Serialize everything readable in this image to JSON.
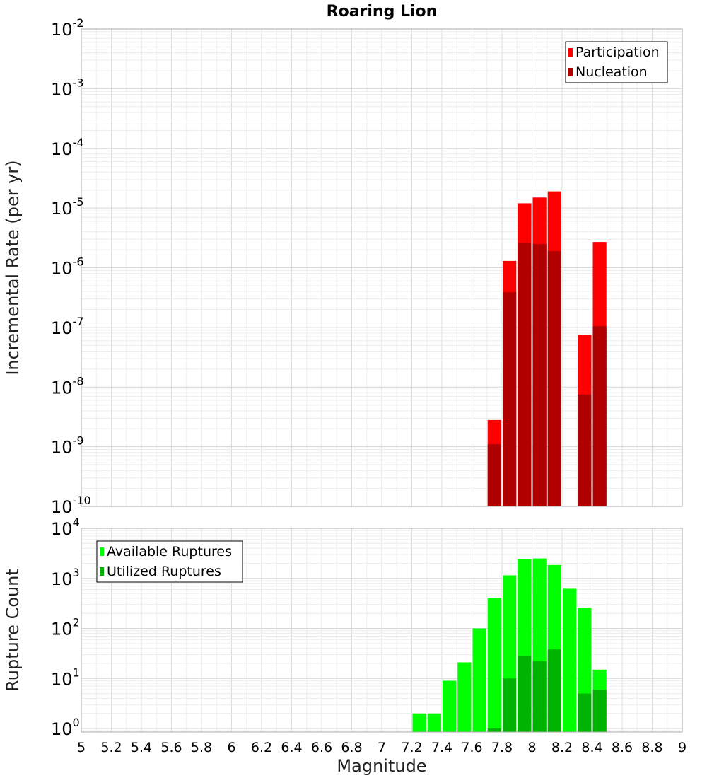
{
  "chart_data": [
    {
      "type": "bar",
      "title": "Roaring Lion",
      "xlabel": "",
      "ylabel": "Incremental Rate (per yr)",
      "yscale": "log",
      "ylim_exp": [
        -10,
        -2
      ],
      "xlim": [
        5,
        9
      ],
      "bin_width": 0.1,
      "grid": true,
      "legend_position": "top-right",
      "y_ticks": [
        {
          "base": "10",
          "exp": "-10"
        },
        {
          "base": "10",
          "exp": "-9"
        },
        {
          "base": "10",
          "exp": "-8"
        },
        {
          "base": "10",
          "exp": "-7"
        },
        {
          "base": "10",
          "exp": "-6"
        },
        {
          "base": "10",
          "exp": "-5"
        },
        {
          "base": "10",
          "exp": "-4"
        },
        {
          "base": "10",
          "exp": "-3"
        },
        {
          "base": "10",
          "exp": "-2"
        }
      ],
      "series": [
        {
          "name": "Participation",
          "color": "#ff0000",
          "x": [
            7.75,
            7.85,
            7.95,
            8.05,
            8.15,
            8.35,
            8.45
          ],
          "values": [
            2.8e-09,
            1.3e-06,
            1.2e-05,
            1.5e-05,
            1.9e-05,
            7.5e-08,
            2.7e-06
          ]
        },
        {
          "name": "Nucleation",
          "color": "#b00000",
          "x": [
            7.75,
            7.85,
            7.95,
            8.05,
            8.15,
            8.35,
            8.45
          ],
          "values": [
            1.1e-09,
            3.9e-07,
            2.6e-06,
            2.5e-06,
            1.9e-06,
            7.5e-09,
            1.05e-07
          ]
        }
      ]
    },
    {
      "type": "bar",
      "title": "",
      "xlabel": "Magnitude",
      "ylabel": "Rupture Count",
      "yscale": "log",
      "ylim_exp": [
        -0.07,
        4
      ],
      "xlim": [
        5,
        9
      ],
      "bin_width": 0.1,
      "grid": true,
      "legend_position": "top-left",
      "x_ticks": [
        "5",
        "5.2",
        "5.4",
        "5.6",
        "5.8",
        "6",
        "6.2",
        "6.4",
        "6.6",
        "6.8",
        "7",
        "7.2",
        "7.4",
        "7.6",
        "7.8",
        "8",
        "8.2",
        "8.4",
        "8.6",
        "8.8",
        "9"
      ],
      "y_ticks": [
        {
          "base": "10",
          "exp": "0"
        },
        {
          "base": "10",
          "exp": "1"
        },
        {
          "base": "10",
          "exp": "2"
        },
        {
          "base": "10",
          "exp": "3"
        },
        {
          "base": "10",
          "exp": "4"
        }
      ],
      "series": [
        {
          "name": "Available Ruptures",
          "color": "#00ff00",
          "x": [
            7.25,
            7.35,
            7.45,
            7.55,
            7.65,
            7.75,
            7.85,
            7.95,
            8.05,
            8.15,
            8.25,
            8.35,
            8.45
          ],
          "values": [
            2,
            2,
            9,
            21,
            100,
            410,
            1150,
            2450,
            2500,
            1850,
            620,
            260,
            15
          ]
        },
        {
          "name": "Utilized Ruptures",
          "color": "#00b300",
          "x": [
            7.75,
            7.85,
            7.95,
            8.05,
            8.15,
            8.35,
            8.45
          ],
          "values": [
            1,
            10,
            28,
            22,
            38,
            5,
            6
          ]
        }
      ]
    }
  ]
}
